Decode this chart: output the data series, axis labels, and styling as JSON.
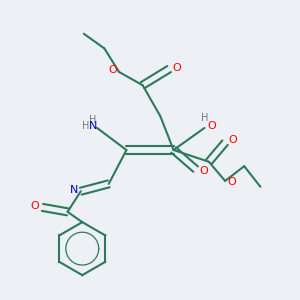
{
  "bg_color": "#edf0f4",
  "bond_color": "#2d7a5a",
  "atom_colors": {
    "O": "#ff0000",
    "N": "#0000cc",
    "H": "#777777",
    "C": "#2d7a5a"
  }
}
